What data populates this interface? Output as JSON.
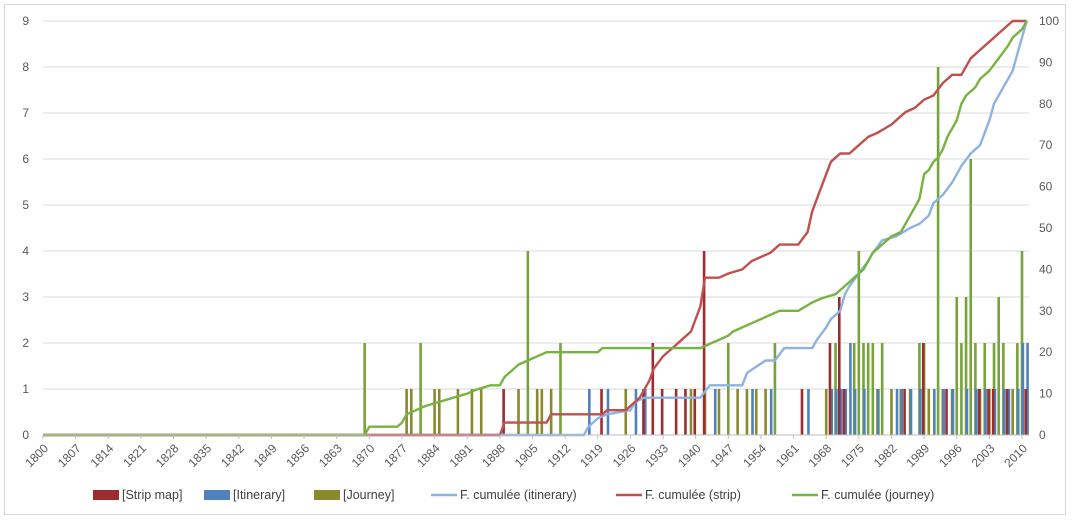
{
  "chart_data": {
    "type": "bar",
    "x_ticks": [
      "1800",
      "1807",
      "1814",
      "1821",
      "1828",
      "1835",
      "1842",
      "1849",
      "1856",
      "1863",
      "1870",
      "1877",
      "1884",
      "1891",
      "1898",
      "1905",
      "1912",
      "1919",
      "1926",
      "1933",
      "1940",
      "1947",
      "1954",
      "1961",
      "1968",
      "1975",
      "1982",
      "1989",
      "1996",
      "2003",
      "2010"
    ],
    "x_range": [
      1800,
      2012
    ],
    "y_left": {
      "range": [
        0,
        9
      ],
      "ticks": [
        "0",
        "1",
        "2",
        "3",
        "4",
        "5",
        "6",
        "7",
        "8",
        "9"
      ]
    },
    "y_right": {
      "range": [
        0,
        100
      ],
      "ticks": [
        "0",
        "10",
        "20",
        "30",
        "40",
        "50",
        "60",
        "70",
        "80",
        "90",
        "100"
      ]
    },
    "grid": "horizontal",
    "legend_position": "bottom",
    "colors": {
      "strip": "#9b2d30",
      "itinerary": "#4f81bd",
      "journey": "#8a8a2c",
      "journey_tall": "#76a33a",
      "cum_itinerary": "#8db3e2",
      "cum_strip": "#c0504d",
      "cum_journey": "#77b341",
      "grid": "#d9d9d9",
      "axis": "#bfbfbf"
    },
    "legend": [
      {
        "label": "[Strip map]",
        "kind": "bar",
        "color": "#9b2d30"
      },
      {
        "label": "[Itinerary]",
        "kind": "bar",
        "color": "#4f81bd"
      },
      {
        "label": "[Journey]",
        "kind": "bar",
        "color": "#8a8a2c"
      },
      {
        "label": "F. cumulée (itinerary)",
        "kind": "line",
        "color": "#8db3e2"
      },
      {
        "label": "F. cumulée (strip)",
        "kind": "line",
        "color": "#c0504d"
      },
      {
        "label": "F. cumulée (journey)",
        "kind": "line",
        "color": "#77b341"
      }
    ],
    "bars": {
      "strip": [
        [
          1899,
          1
        ],
        [
          1920,
          1
        ],
        [
          1929,
          1
        ],
        [
          1931,
          2
        ],
        [
          1933,
          1
        ],
        [
          1936,
          1
        ],
        [
          1938,
          1
        ],
        [
          1940,
          1
        ],
        [
          1942,
          4
        ],
        [
          1963,
          1
        ],
        [
          1969,
          2
        ],
        [
          1971,
          3
        ],
        [
          1972,
          1
        ],
        [
          1985,
          1
        ],
        [
          1989,
          2
        ],
        [
          1994,
          1
        ],
        [
          2001,
          1
        ],
        [
          2003,
          1
        ],
        [
          2004,
          1
        ],
        [
          2007,
          1
        ],
        [
          2011,
          1
        ]
      ],
      "itinerary": [
        [
          1917,
          1
        ],
        [
          1921,
          1
        ],
        [
          1927,
          1
        ],
        [
          1929,
          1
        ],
        [
          1944,
          1
        ],
        [
          1952,
          1
        ],
        [
          1956,
          1
        ],
        [
          1964,
          1
        ],
        [
          1969,
          1
        ],
        [
          1970,
          1
        ],
        [
          1971,
          1
        ],
        [
          1972,
          1
        ],
        [
          1973,
          2
        ],
        [
          1974,
          1
        ],
        [
          1976,
          1
        ],
        [
          1979,
          1
        ],
        [
          1983,
          1
        ],
        [
          1984,
          1
        ],
        [
          1986,
          1
        ],
        [
          1988,
          1
        ],
        [
          1991,
          1
        ],
        [
          1993,
          1
        ],
        [
          1995,
          1
        ],
        [
          1998,
          1
        ],
        [
          2000,
          1
        ],
        [
          2002,
          1
        ],
        [
          2004,
          1
        ],
        [
          2006,
          1
        ],
        [
          2007,
          1
        ],
        [
          2009,
          1
        ],
        [
          2010,
          2
        ],
        [
          2011,
          2
        ]
      ],
      "journey": [
        [
          1869,
          2
        ],
        [
          1878,
          1
        ],
        [
          1879,
          1
        ],
        [
          1881,
          2
        ],
        [
          1884,
          1
        ],
        [
          1885,
          1
        ],
        [
          1889,
          1
        ],
        [
          1892,
          1
        ],
        [
          1894,
          1
        ],
        [
          1902,
          1
        ],
        [
          1904,
          4
        ],
        [
          1906,
          1
        ],
        [
          1907,
          1
        ],
        [
          1909,
          1
        ],
        [
          1911,
          2
        ],
        [
          1925,
          1
        ],
        [
          1939,
          1
        ],
        [
          1942,
          1
        ],
        [
          1945,
          1
        ],
        [
          1947,
          2
        ],
        [
          1949,
          1
        ],
        [
          1951,
          1
        ],
        [
          1953,
          1
        ],
        [
          1955,
          1
        ],
        [
          1957,
          2
        ],
        [
          1968,
          1
        ],
        [
          1970,
          2
        ],
        [
          1972,
          1
        ],
        [
          1974,
          2
        ],
        [
          1975,
          4
        ],
        [
          1976,
          2
        ],
        [
          1977,
          2
        ],
        [
          1978,
          2
        ],
        [
          1979,
          1
        ],
        [
          1980,
          2
        ],
        [
          1982,
          1
        ],
        [
          1984,
          1
        ],
        [
          1986,
          1
        ],
        [
          1988,
          2
        ],
        [
          1989,
          2
        ],
        [
          1990,
          1
        ],
        [
          1992,
          8
        ],
        [
          1993,
          1
        ],
        [
          1995,
          1
        ],
        [
          1996,
          3
        ],
        [
          1997,
          2
        ],
        [
          1998,
          3
        ],
        [
          1999,
          6
        ],
        [
          2000,
          2
        ],
        [
          2001,
          1
        ],
        [
          2002,
          2
        ],
        [
          2003,
          1
        ],
        [
          2004,
          2
        ],
        [
          2005,
          3
        ],
        [
          2006,
          2
        ],
        [
          2008,
          1
        ],
        [
          2009,
          2
        ],
        [
          2010,
          4
        ],
        [
          2011,
          1
        ]
      ]
    },
    "cumulative": {
      "itinerary": [
        [
          1800,
          0
        ],
        [
          1898,
          0
        ],
        [
          1916,
          0
        ],
        [
          1917,
          2
        ],
        [
          1919,
          4
        ],
        [
          1921,
          5
        ],
        [
          1926,
          6
        ],
        [
          1927,
          8
        ],
        [
          1929,
          9
        ],
        [
          1941,
          9
        ],
        [
          1943,
          12
        ],
        [
          1950,
          12
        ],
        [
          1951,
          15
        ],
        [
          1955,
          18
        ],
        [
          1957,
          18
        ],
        [
          1959,
          21
        ],
        [
          1965,
          21
        ],
        [
          1966,
          23
        ],
        [
          1968,
          26
        ],
        [
          1969,
          28
        ],
        [
          1971,
          30
        ],
        [
          1972,
          34
        ],
        [
          1973,
          36
        ],
        [
          1975,
          39
        ],
        [
          1977,
          42
        ],
        [
          1978,
          44
        ],
        [
          1980,
          47
        ],
        [
          1983,
          48
        ],
        [
          1986,
          50
        ],
        [
          1988,
          51
        ],
        [
          1990,
          53
        ],
        [
          1991,
          56
        ],
        [
          1993,
          58
        ],
        [
          1995,
          61
        ],
        [
          1997,
          65
        ],
        [
          1999,
          68
        ],
        [
          2001,
          70
        ],
        [
          2003,
          76
        ],
        [
          2004,
          80
        ],
        [
          2006,
          84
        ],
        [
          2008,
          88
        ],
        [
          2009,
          92
        ],
        [
          2010,
          96
        ],
        [
          2011,
          100
        ]
      ],
      "strip": [
        [
          1800,
          0
        ],
        [
          1898,
          0
        ],
        [
          1899,
          3
        ],
        [
          1908,
          3
        ],
        [
          1909,
          5
        ],
        [
          1920,
          5
        ],
        [
          1921,
          6
        ],
        [
          1925,
          6
        ],
        [
          1928,
          9
        ],
        [
          1930,
          13
        ],
        [
          1931,
          16
        ],
        [
          1933,
          19
        ],
        [
          1935,
          21
        ],
        [
          1937,
          23
        ],
        [
          1939,
          25
        ],
        [
          1941,
          31
        ],
        [
          1942,
          38
        ],
        [
          1945,
          38
        ],
        [
          1947,
          39
        ],
        [
          1950,
          40
        ],
        [
          1952,
          42
        ],
        [
          1956,
          44
        ],
        [
          1958,
          46
        ],
        [
          1962,
          46
        ],
        [
          1964,
          49
        ],
        [
          1965,
          54
        ],
        [
          1967,
          60
        ],
        [
          1969,
          66
        ],
        [
          1971,
          68
        ],
        [
          1973,
          68
        ],
        [
          1975,
          70
        ],
        [
          1977,
          72
        ],
        [
          1979,
          73
        ],
        [
          1982,
          75
        ],
        [
          1984,
          77
        ],
        [
          1985,
          78
        ],
        [
          1987,
          79
        ],
        [
          1989,
          81
        ],
        [
          1991,
          82
        ],
        [
          1993,
          85
        ],
        [
          1995,
          87
        ],
        [
          1997,
          87
        ],
        [
          1999,
          91
        ],
        [
          2001,
          93
        ],
        [
          2003,
          95
        ],
        [
          2005,
          97
        ],
        [
          2007,
          99
        ],
        [
          2008,
          100
        ],
        [
          2011,
          100
        ]
      ],
      "journey": [
        [
          1800,
          0
        ],
        [
          1869,
          0
        ],
        [
          1870,
          2
        ],
        [
          1876,
          2
        ],
        [
          1877,
          3
        ],
        [
          1878,
          5
        ],
        [
          1880,
          6
        ],
        [
          1882,
          7
        ],
        [
          1885,
          8
        ],
        [
          1888,
          9
        ],
        [
          1891,
          10
        ],
        [
          1893,
          11
        ],
        [
          1896,
          12
        ],
        [
          1898,
          12
        ],
        [
          1899,
          14
        ],
        [
          1901,
          16
        ],
        [
          1902,
          17
        ],
        [
          1904,
          18
        ],
        [
          1906,
          19
        ],
        [
          1908,
          20
        ],
        [
          1919,
          20
        ],
        [
          1920,
          21
        ],
        [
          1941,
          21
        ],
        [
          1943,
          22
        ],
        [
          1945,
          23
        ],
        [
          1947,
          24
        ],
        [
          1948,
          25
        ],
        [
          1950,
          26
        ],
        [
          1952,
          27
        ],
        [
          1954,
          28
        ],
        [
          1956,
          29
        ],
        [
          1958,
          30
        ],
        [
          1962,
          30
        ],
        [
          1965,
          32
        ],
        [
          1967,
          33
        ],
        [
          1970,
          34
        ],
        [
          1972,
          36
        ],
        [
          1974,
          38
        ],
        [
          1976,
          40
        ],
        [
          1977,
          42
        ],
        [
          1978,
          44
        ],
        [
          1980,
          46
        ],
        [
          1982,
          48
        ],
        [
          1984,
          49
        ],
        [
          1985,
          51
        ],
        [
          1986,
          53
        ],
        [
          1987,
          55
        ],
        [
          1988,
          57
        ],
        [
          1989,
          63
        ],
        [
          1990,
          64
        ],
        [
          1991,
          66
        ],
        [
          1992,
          67
        ],
        [
          1993,
          69
        ],
        [
          1994,
          72
        ],
        [
          1996,
          76
        ],
        [
          1997,
          80
        ],
        [
          1998,
          82
        ],
        [
          2000,
          84
        ],
        [
          2001,
          86
        ],
        [
          2003,
          88
        ],
        [
          2005,
          91
        ],
        [
          2007,
          94
        ],
        [
          2008,
          96
        ],
        [
          2010,
          98
        ],
        [
          2011,
          100
        ]
      ]
    }
  }
}
